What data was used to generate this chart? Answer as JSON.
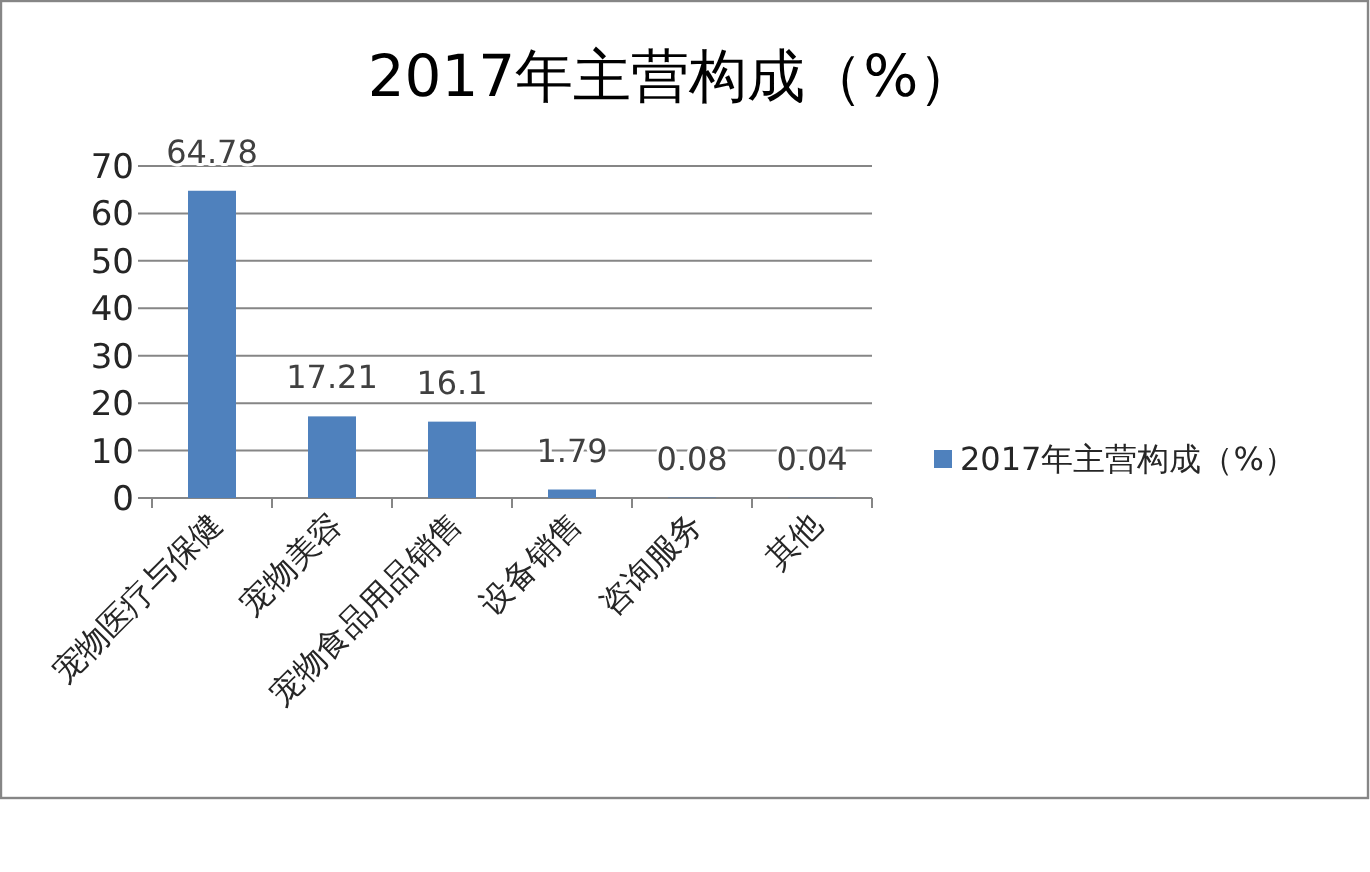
{
  "chart_data": {
    "type": "bar",
    "title": "2017年主营构成（%）",
    "categories": [
      "宠物医疗与保健",
      "宠物美容",
      "宠物食品用品销售",
      "设备销售",
      "咨询服务",
      "其他"
    ],
    "series": [
      {
        "name": "2017年主营构成（%）",
        "color": "#4f81bd",
        "values": [
          64.78,
          17.21,
          16.1,
          1.79,
          0.08,
          0.04
        ]
      }
    ],
    "ylim": [
      0,
      70
    ],
    "yticks": [
      0,
      10,
      20,
      30,
      40,
      50,
      60,
      70
    ],
    "grid": "y",
    "legend": "right",
    "data_labels": true
  }
}
